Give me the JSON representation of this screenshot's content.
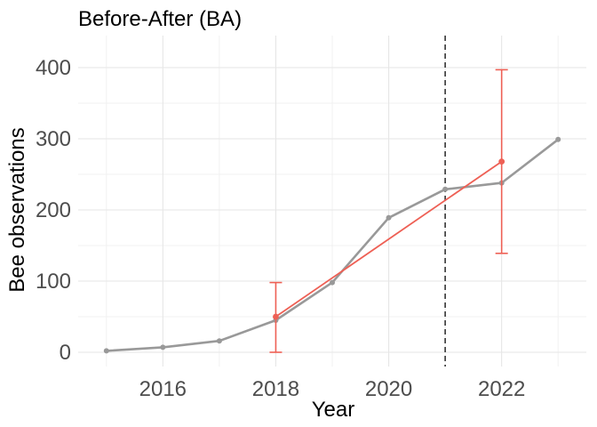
{
  "chart_data": {
    "type": "line",
    "title": "Before-After (BA)",
    "xlabel": "Year",
    "ylabel": "Bee observations",
    "xlim": [
      2014.5,
      2023.5
    ],
    "ylim": [
      -20,
      445
    ],
    "x_ticks": [
      2016,
      2018,
      2020,
      2022
    ],
    "x_tick_labels": [
      "2016",
      "2018",
      "2020",
      "2022"
    ],
    "y_ticks": [
      0,
      100,
      200,
      300,
      400
    ],
    "y_tick_labels": [
      "0",
      "100",
      "200",
      "300",
      "400"
    ],
    "grid": true,
    "legend": "none",
    "intervention_year": 2021,
    "series": [
      {
        "color": "#999999",
        "x": [
          2015,
          2016,
          2017,
          2018,
          2019,
          2020,
          2021,
          2022,
          2023
        ],
        "y": [
          2,
          7,
          16,
          45,
          98,
          189,
          229,
          238,
          299
        ]
      },
      {
        "color": "#ee6055",
        "x": [
          2018,
          2022
        ],
        "y": [
          50,
          268
        ],
        "error_low": [
          0,
          139
        ],
        "error_high": [
          98,
          397
        ]
      }
    ]
  }
}
